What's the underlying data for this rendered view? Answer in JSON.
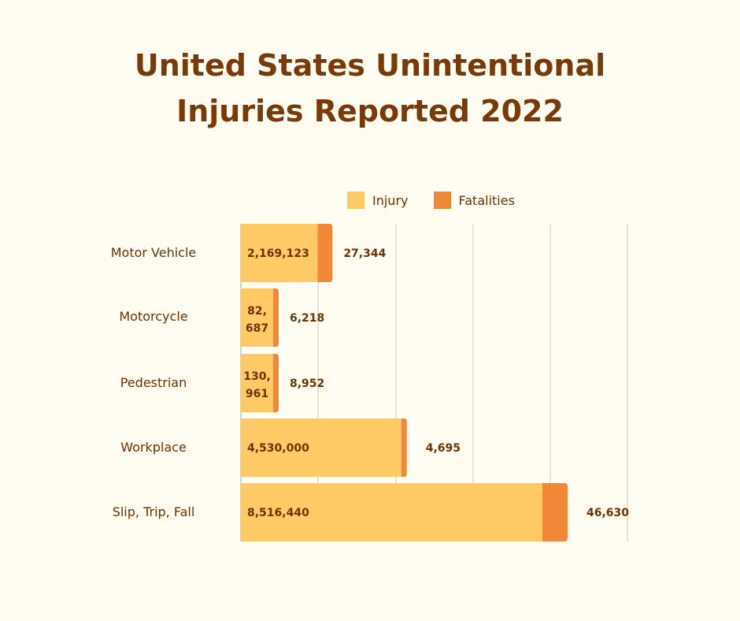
{
  "chart_data": {
    "type": "bar",
    "orientation": "horizontal",
    "stacked": true,
    "title": "United States Unintentional Injuries Reported 2022",
    "title_lines": [
      "United States Unintentional",
      "Injuries Reported 2022"
    ],
    "categories": [
      "Motor Vehicle",
      "Motorcycle",
      "Pedestrian",
      "Workplace",
      "Slip, Trip, Fall"
    ],
    "series": [
      {
        "name": "Injury",
        "color": "#ffc966",
        "values": [
          2169123,
          82687,
          130961,
          4530000,
          8516440
        ],
        "labels": [
          "2,169,123",
          "82,687",
          "130,961",
          "4,530,000",
          "8,516,440"
        ]
      },
      {
        "name": "Fatalities",
        "color": "#f08838",
        "values": [
          27344,
          6218,
          8952,
          4695,
          46630
        ],
        "labels": [
          "27,344",
          "6,218",
          "8,952",
          "4,695",
          "46,630"
        ]
      }
    ],
    "grid": true,
    "legend": "top",
    "xlabel": "",
    "ylabel": ""
  }
}
